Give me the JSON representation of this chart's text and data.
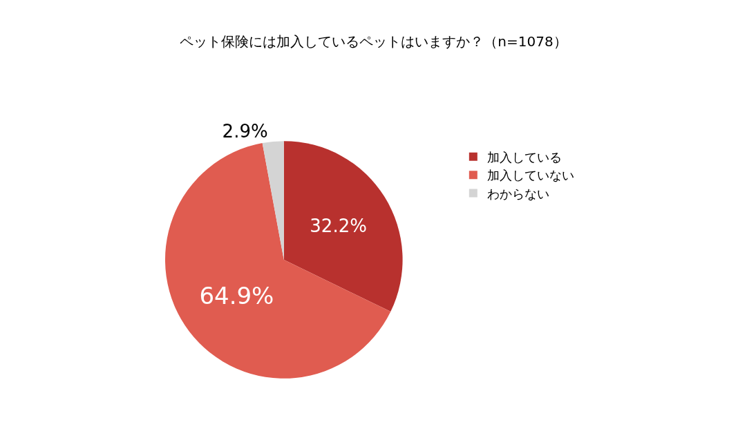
{
  "chart_data": {
    "type": "pie",
    "title": "ペット保険には加入しているペットはいますか？（n=1078）",
    "categories": [
      "加入している",
      "加入していない",
      "わからない"
    ],
    "values": [
      32.2,
      64.9,
      2.9
    ],
    "value_labels": [
      "32.2%",
      "64.9%",
      "2.9%"
    ],
    "colors": [
      "#b8312e",
      "#e05c50",
      "#d4d4d4"
    ],
    "legend": "right"
  }
}
